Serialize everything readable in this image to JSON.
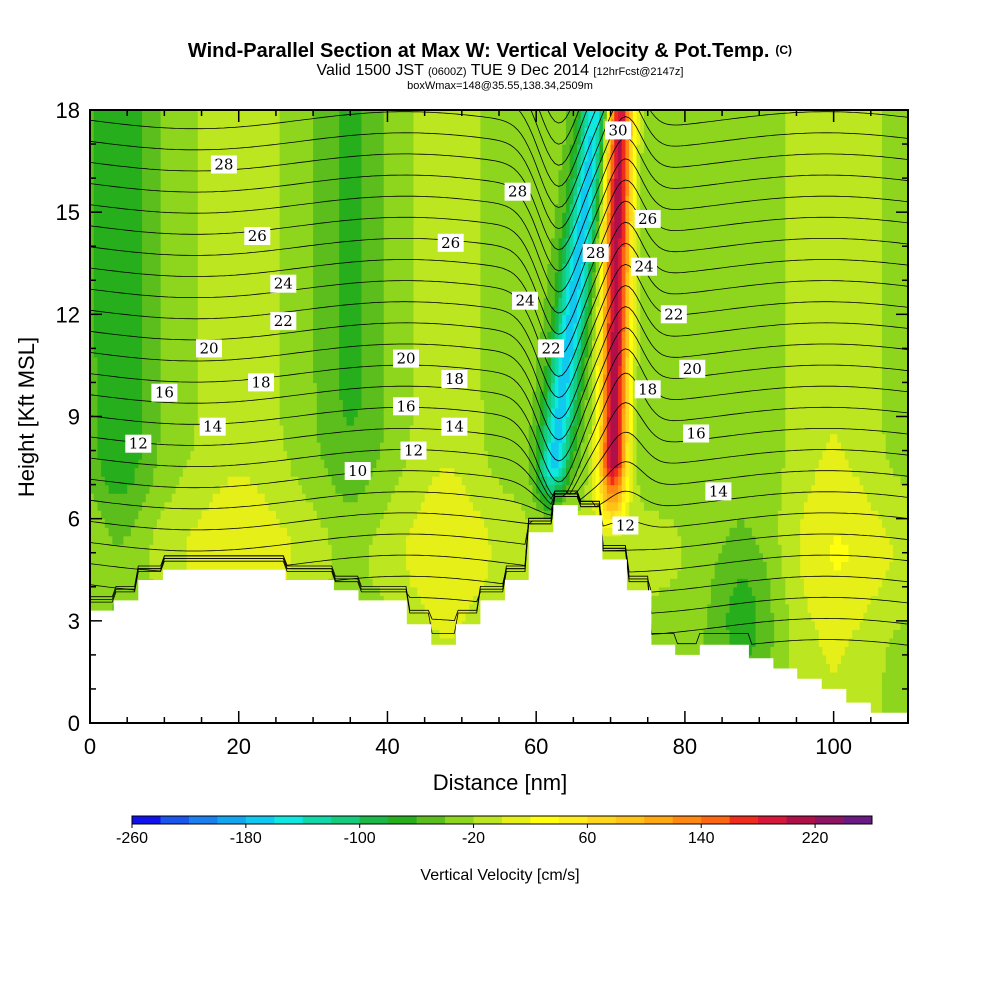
{
  "chart_data": {
    "type": "heatmap",
    "title": "Wind-Parallel Section at Max W: Vertical Velocity & Pot.Temp.",
    "title_mark": "(C)",
    "subtitle": {
      "pre": "Valid 1500 JST",
      "small": "(0600Z)",
      "mid": "TUE 9 Dec 2014",
      "tail": "[12hrFcst@2147z]"
    },
    "subtitle2": "boxWmax=148@35.55,138.34,2509m",
    "xlabel": "Distance [nm]",
    "ylabel": "Height [Kft MSL]",
    "xlim": [
      0,
      110
    ],
    "ylim": [
      0,
      18
    ],
    "xticks": [
      0,
      20,
      40,
      60,
      80,
      100
    ],
    "yticks": [
      0,
      3,
      6,
      9,
      12,
      15,
      18
    ],
    "colorbar": {
      "label": "Vertical Velocity [cm/s]",
      "min": -260,
      "max": 260,
      "step": 20,
      "tick_labels": [
        "-260",
        "-180",
        "-100",
        "-20",
        "60",
        "140",
        "220"
      ],
      "tick_values": [
        -260,
        -180,
        -100,
        -20,
        60,
        140,
        220
      ],
      "colors": [
        "#1111ee",
        "#1a55ee",
        "#1a7fef",
        "#13a6f0",
        "#10c8f0",
        "#0ee8e0",
        "#10d8a8",
        "#14cc7c",
        "#1ab848",
        "#26ae1c",
        "#5cbe1c",
        "#8ed61e",
        "#bce620",
        "#e6f018",
        "#ffff0e",
        "#ffec1c",
        "#ffd81e",
        "#ffc218",
        "#ffa812",
        "#ff8810",
        "#ff6612",
        "#f02c1c",
        "#d81838",
        "#b0104a",
        "#8c1462",
        "#6a1a82"
      ]
    },
    "theta_contour_labels": [
      {
        "text": "10",
        "x": 36,
        "y": 7.4
      },
      {
        "text": "12",
        "x": 6.5,
        "y": 8.2
      },
      {
        "text": "12",
        "x": 43.5,
        "y": 8.0
      },
      {
        "text": "12",
        "x": 72,
        "y": 5.8
      },
      {
        "text": "14",
        "x": 16.5,
        "y": 8.7
      },
      {
        "text": "14",
        "x": 49,
        "y": 8.7
      },
      {
        "text": "14",
        "x": 84.5,
        "y": 6.8
      },
      {
        "text": "16",
        "x": 10,
        "y": 9.7
      },
      {
        "text": "16",
        "x": 42.5,
        "y": 9.3
      },
      {
        "text": "16",
        "x": 81.5,
        "y": 8.5
      },
      {
        "text": "18",
        "x": 23,
        "y": 10.0
      },
      {
        "text": "18",
        "x": 49,
        "y": 10.1
      },
      {
        "text": "18",
        "x": 75,
        "y": 9.8
      },
      {
        "text": "20",
        "x": 16,
        "y": 11.0
      },
      {
        "text": "20",
        "x": 42.5,
        "y": 10.7
      },
      {
        "text": "20",
        "x": 81,
        "y": 10.4
      },
      {
        "text": "22",
        "x": 26,
        "y": 11.8
      },
      {
        "text": "22",
        "x": 62,
        "y": 11.0
      },
      {
        "text": "22",
        "x": 78.5,
        "y": 12.0
      },
      {
        "text": "24",
        "x": 26,
        "y": 12.9
      },
      {
        "text": "24",
        "x": 58.5,
        "y": 12.4
      },
      {
        "text": "24",
        "x": 74.5,
        "y": 13.4
      },
      {
        "text": "26",
        "x": 22.5,
        "y": 14.3
      },
      {
        "text": "26",
        "x": 48.5,
        "y": 14.1
      },
      {
        "text": "26",
        "x": 75,
        "y": 14.8
      },
      {
        "text": "28",
        "x": 18,
        "y": 16.4
      },
      {
        "text": "28",
        "x": 57.5,
        "y": 15.6
      },
      {
        "text": "28",
        "x": 68,
        "y": 13.8
      },
      {
        "text": "30",
        "x": 71,
        "y": 17.4
      }
    ],
    "terrain_top": [
      [
        0,
        3.3
      ],
      [
        3.2,
        3.3
      ],
      [
        3.2,
        3.6
      ],
      [
        6.5,
        3.6
      ],
      [
        6.5,
        4.2
      ],
      [
        9.8,
        4.2
      ],
      [
        9.8,
        4.5
      ],
      [
        26.3,
        4.5
      ],
      [
        26.3,
        4.2
      ],
      [
        32.8,
        4.2
      ],
      [
        32.8,
        3.9
      ],
      [
        36.1,
        3.9
      ],
      [
        36.1,
        3.6
      ],
      [
        42.6,
        3.6
      ],
      [
        42.6,
        2.9
      ],
      [
        45.9,
        2.9
      ],
      [
        45.9,
        2.3
      ],
      [
        49.2,
        2.3
      ],
      [
        49.2,
        2.9
      ],
      [
        52.5,
        2.9
      ],
      [
        52.5,
        3.6
      ],
      [
        55.8,
        3.6
      ],
      [
        55.8,
        4.2
      ],
      [
        59,
        4.2
      ],
      [
        59,
        5.6
      ],
      [
        62.3,
        5.6
      ],
      [
        62.3,
        6.4
      ],
      [
        65.6,
        6.4
      ],
      [
        65.6,
        6.1
      ],
      [
        68.9,
        6.1
      ],
      [
        68.9,
        4.8
      ],
      [
        72.2,
        4.8
      ],
      [
        72.2,
        3.9
      ],
      [
        75.5,
        3.9
      ],
      [
        75.5,
        2.3
      ],
      [
        78.7,
        2.3
      ],
      [
        78.7,
        2.0
      ],
      [
        82,
        2.0
      ],
      [
        82,
        2.3
      ],
      [
        88.6,
        2.3
      ],
      [
        88.6,
        1.9
      ],
      [
        91.9,
        1.9
      ],
      [
        91.9,
        1.6
      ],
      [
        95.1,
        1.6
      ],
      [
        95.1,
        1.3
      ],
      [
        98.4,
        1.3
      ],
      [
        98.4,
        1.0
      ],
      [
        101.7,
        1.0
      ],
      [
        101.7,
        0.6
      ],
      [
        105,
        0.6
      ],
      [
        105,
        0.3
      ],
      [
        110,
        0.3
      ]
    ]
  }
}
